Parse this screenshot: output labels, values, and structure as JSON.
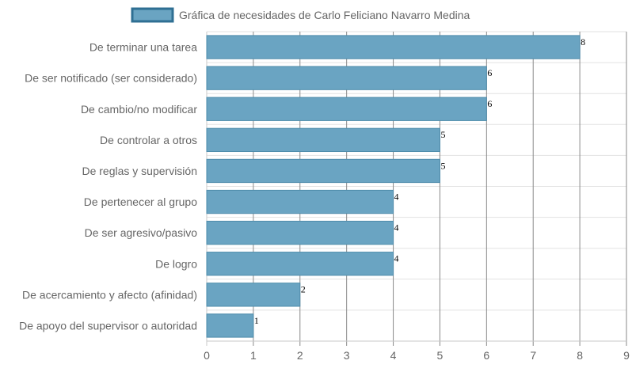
{
  "chart_data": {
    "type": "bar",
    "orientation": "horizontal",
    "categories": [
      "De terminar una tarea",
      "De ser notificado (ser considerado)",
      "De cambio/no modificar",
      "De controlar a otros",
      "De reglas y supervisión",
      "De pertenecer al grupo",
      "De ser agresivo/pasivo",
      "De logro",
      "De acercamiento y afecto (afinidad)",
      "De apoyo del supervisor o autoridad"
    ],
    "series": [
      {
        "name": "Gráfica de necesidades de Carlo Feliciano Navarro Medina",
        "values": [
          8,
          6,
          6,
          5,
          5,
          4,
          4,
          4,
          2,
          1
        ]
      }
    ],
    "xticks": [
      "0",
      "1",
      "2",
      "3",
      "4",
      "5",
      "6",
      "7",
      "8",
      "9"
    ],
    "xlim": [
      0,
      9
    ],
    "grid": true,
    "legend": "top",
    "data_labels": true
  },
  "colors": {
    "bar_fill": "#6aa4c2",
    "bar_stroke": "#4e8cab",
    "legend_fill": "#6aa4c2",
    "legend_stroke": "#2f6f93",
    "grid_vertical": "#8a8a8a",
    "grid_horizontal": "#e2e2e2",
    "axis": "#c8c8c8"
  }
}
